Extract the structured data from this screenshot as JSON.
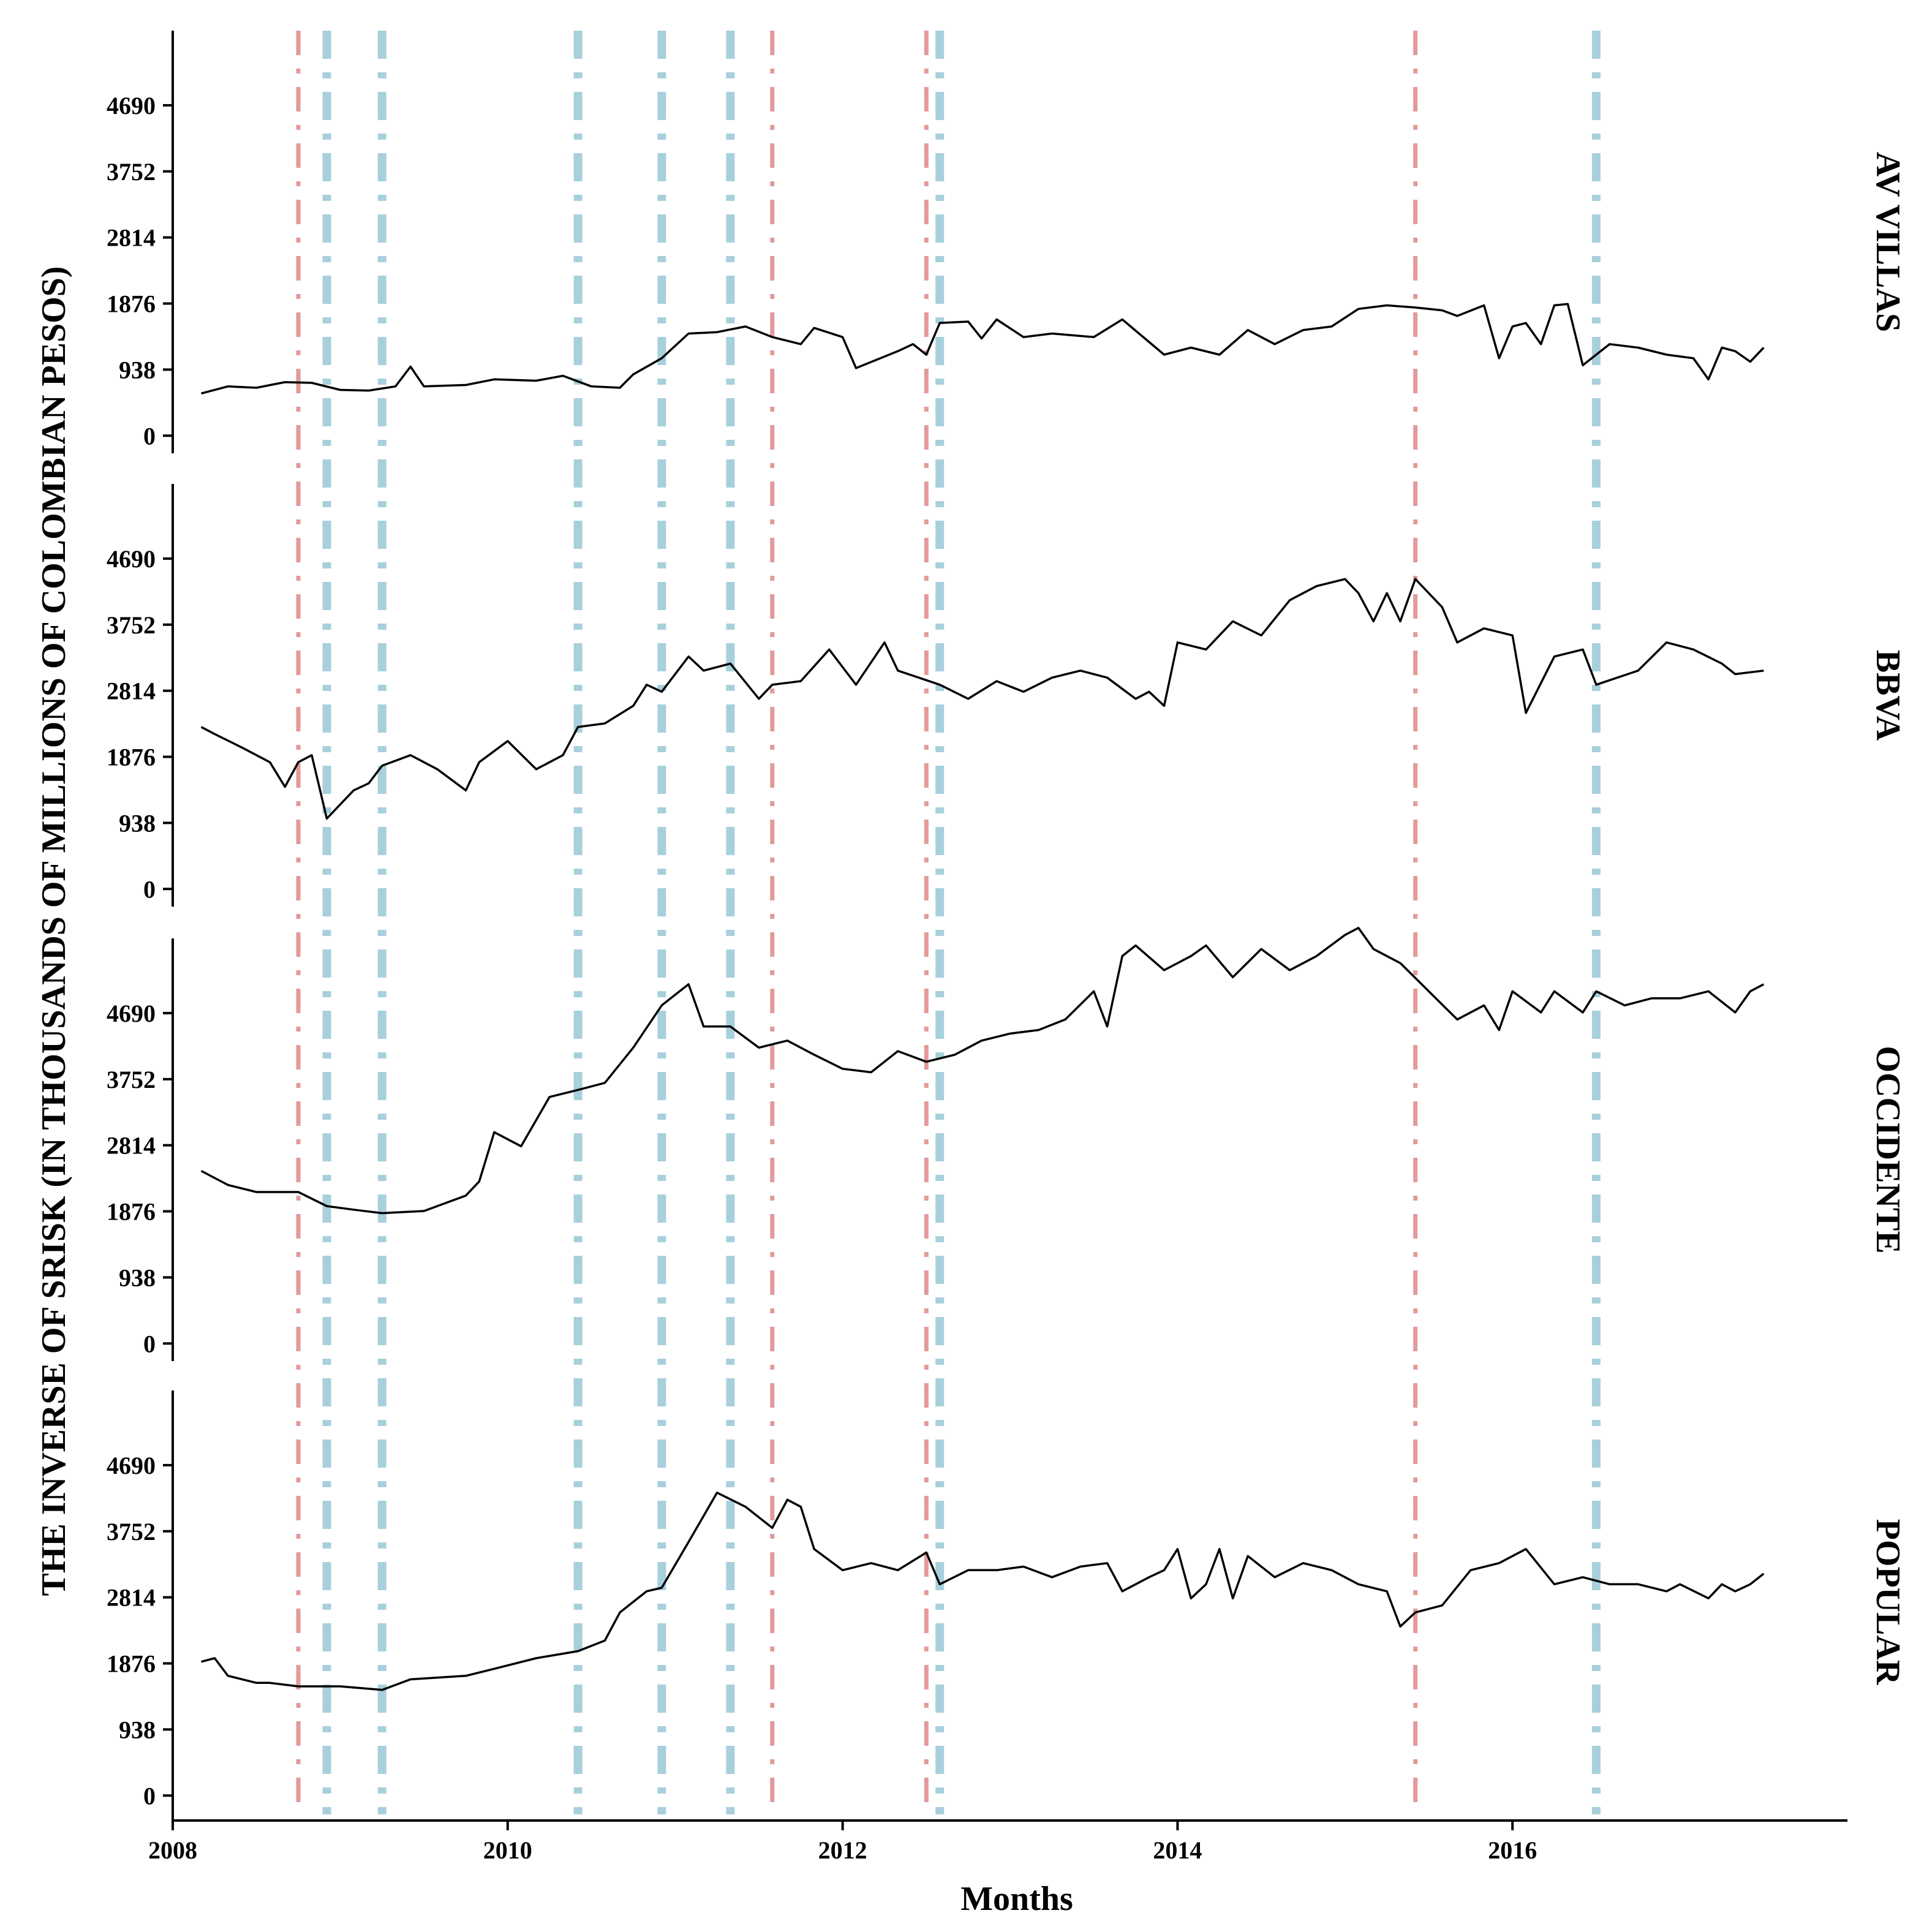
{
  "chart_data": {
    "type": "line",
    "layout": "faceted-vertical",
    "xlabel": "Months",
    "ylabel": "THE INVERSE OF SRISK (IN THOUSANDS OF MILLIONS OF COLOMBIAN PESOS)",
    "x_ticks": [
      2008,
      2010,
      2012,
      2014,
      2016
    ],
    "y_ticks": [
      0,
      938,
      1876,
      2814,
      3752,
      4690
    ],
    "xlim": [
      2008.0,
      2018.0
    ],
    "ylim": [
      -250,
      5750
    ],
    "grid": false,
    "vlines": {
      "red": {
        "color": "#e29a9a",
        "style": "dash-dot",
        "x": [
          2008.75,
          2011.58,
          2012.5,
          2015.42
        ]
      },
      "blue": {
        "color": "#a8d0dc",
        "style": "dash-dot",
        "x": [
          2008.92,
          2009.25,
          2010.42,
          2010.92,
          2011.33,
          2012.58,
          2016.5
        ]
      }
    },
    "line_color": "#000000",
    "panels": [
      {
        "name": "AV VILLAS",
        "points": [
          [
            2008.17,
            600
          ],
          [
            2008.33,
            700
          ],
          [
            2008.5,
            680
          ],
          [
            2008.67,
            760
          ],
          [
            2008.83,
            750
          ],
          [
            2009.0,
            650
          ],
          [
            2009.17,
            640
          ],
          [
            2009.33,
            700
          ],
          [
            2009.42,
            980
          ],
          [
            2009.5,
            700
          ],
          [
            2009.75,
            720
          ],
          [
            2009.92,
            800
          ],
          [
            2010.17,
            780
          ],
          [
            2010.33,
            850
          ],
          [
            2010.5,
            700
          ],
          [
            2010.67,
            680
          ],
          [
            2010.75,
            870
          ],
          [
            2010.92,
            1100
          ],
          [
            2011.08,
            1450
          ],
          [
            2011.25,
            1470
          ],
          [
            2011.42,
            1550
          ],
          [
            2011.58,
            1400
          ],
          [
            2011.75,
            1300
          ],
          [
            2011.83,
            1530
          ],
          [
            2012.0,
            1400
          ],
          [
            2012.08,
            960
          ],
          [
            2012.33,
            1200
          ],
          [
            2012.42,
            1300
          ],
          [
            2012.5,
            1150
          ],
          [
            2012.58,
            1600
          ],
          [
            2012.75,
            1620
          ],
          [
            2012.83,
            1380
          ],
          [
            2012.92,
            1650
          ],
          [
            2013.08,
            1400
          ],
          [
            2013.25,
            1450
          ],
          [
            2013.5,
            1400
          ],
          [
            2013.67,
            1650
          ],
          [
            2013.92,
            1150
          ],
          [
            2014.08,
            1250
          ],
          [
            2014.25,
            1150
          ],
          [
            2014.42,
            1500
          ],
          [
            2014.58,
            1300
          ],
          [
            2014.75,
            1500
          ],
          [
            2014.92,
            1550
          ],
          [
            2015.08,
            1800
          ],
          [
            2015.25,
            1850
          ],
          [
            2015.42,
            1820
          ],
          [
            2015.58,
            1780
          ],
          [
            2015.67,
            1700
          ],
          [
            2015.83,
            1850
          ],
          [
            2015.92,
            1100
          ],
          [
            2016.0,
            1550
          ],
          [
            2016.08,
            1600
          ],
          [
            2016.17,
            1300
          ],
          [
            2016.25,
            1850
          ],
          [
            2016.33,
            1870
          ],
          [
            2016.42,
            1000
          ],
          [
            2016.58,
            1300
          ],
          [
            2016.75,
            1250
          ],
          [
            2016.92,
            1150
          ],
          [
            2017.08,
            1100
          ],
          [
            2017.17,
            800
          ],
          [
            2017.25,
            1250
          ],
          [
            2017.33,
            1200
          ],
          [
            2017.42,
            1050
          ],
          [
            2017.5,
            1250
          ]
        ]
      },
      {
        "name": "BBVA",
        "points": [
          [
            2008.17,
            2300
          ],
          [
            2008.25,
            2200
          ],
          [
            2008.42,
            2000
          ],
          [
            2008.58,
            1800
          ],
          [
            2008.67,
            1450
          ],
          [
            2008.75,
            1800
          ],
          [
            2008.83,
            1900
          ],
          [
            2008.92,
            1000
          ],
          [
            2009.08,
            1400
          ],
          [
            2009.17,
            1500
          ],
          [
            2009.25,
            1750
          ],
          [
            2009.42,
            1900
          ],
          [
            2009.58,
            1700
          ],
          [
            2009.75,
            1400
          ],
          [
            2009.83,
            1800
          ],
          [
            2010.0,
            2100
          ],
          [
            2010.17,
            1700
          ],
          [
            2010.33,
            1900
          ],
          [
            2010.42,
            2300
          ],
          [
            2010.58,
            2350
          ],
          [
            2010.75,
            2600
          ],
          [
            2010.83,
            2900
          ],
          [
            2010.92,
            2800
          ],
          [
            2011.08,
            3300
          ],
          [
            2011.17,
            3100
          ],
          [
            2011.33,
            3200
          ],
          [
            2011.5,
            2700
          ],
          [
            2011.58,
            2900
          ],
          [
            2011.75,
            2950
          ],
          [
            2011.92,
            3400
          ],
          [
            2012.08,
            2900
          ],
          [
            2012.25,
            3500
          ],
          [
            2012.33,
            3100
          ],
          [
            2012.58,
            2900
          ],
          [
            2012.75,
            2700
          ],
          [
            2012.92,
            2950
          ],
          [
            2013.08,
            2800
          ],
          [
            2013.25,
            3000
          ],
          [
            2013.42,
            3100
          ],
          [
            2013.58,
            3000
          ],
          [
            2013.75,
            2700
          ],
          [
            2013.83,
            2800
          ],
          [
            2013.92,
            2600
          ],
          [
            2014.0,
            3500
          ],
          [
            2014.17,
            3400
          ],
          [
            2014.33,
            3800
          ],
          [
            2014.5,
            3600
          ],
          [
            2014.67,
            4100
          ],
          [
            2014.83,
            4300
          ],
          [
            2015.0,
            4400
          ],
          [
            2015.08,
            4200
          ],
          [
            2015.17,
            3800
          ],
          [
            2015.25,
            4200
          ],
          [
            2015.33,
            3800
          ],
          [
            2015.42,
            4400
          ],
          [
            2015.58,
            4000
          ],
          [
            2015.67,
            3500
          ],
          [
            2015.83,
            3700
          ],
          [
            2016.0,
            3600
          ],
          [
            2016.08,
            2500
          ],
          [
            2016.25,
            3300
          ],
          [
            2016.42,
            3400
          ],
          [
            2016.5,
            2900
          ],
          [
            2016.75,
            3100
          ],
          [
            2016.92,
            3500
          ],
          [
            2017.08,
            3400
          ],
          [
            2017.25,
            3200
          ],
          [
            2017.33,
            3050
          ],
          [
            2017.5,
            3100
          ]
        ]
      },
      {
        "name": "OCCIDENTE",
        "points": [
          [
            2008.17,
            2450
          ],
          [
            2008.33,
            2250
          ],
          [
            2008.5,
            2150
          ],
          [
            2008.75,
            2150
          ],
          [
            2008.92,
            1950
          ],
          [
            2009.08,
            1900
          ],
          [
            2009.25,
            1850
          ],
          [
            2009.5,
            1880
          ],
          [
            2009.75,
            2100
          ],
          [
            2009.83,
            2300
          ],
          [
            2009.92,
            3000
          ],
          [
            2010.08,
            2800
          ],
          [
            2010.25,
            3500
          ],
          [
            2010.42,
            3600
          ],
          [
            2010.58,
            3700
          ],
          [
            2010.75,
            4200
          ],
          [
            2010.92,
            4800
          ],
          [
            2011.08,
            5100
          ],
          [
            2011.17,
            4500
          ],
          [
            2011.33,
            4500
          ],
          [
            2011.5,
            4200
          ],
          [
            2011.67,
            4300
          ],
          [
            2011.83,
            4100
          ],
          [
            2012.0,
            3900
          ],
          [
            2012.17,
            3850
          ],
          [
            2012.33,
            4150
          ],
          [
            2012.5,
            4000
          ],
          [
            2012.67,
            4100
          ],
          [
            2012.83,
            4300
          ],
          [
            2013.0,
            4400
          ],
          [
            2013.17,
            4450
          ],
          [
            2013.33,
            4600
          ],
          [
            2013.5,
            5000
          ],
          [
            2013.58,
            4500
          ],
          [
            2013.67,
            5500
          ],
          [
            2013.75,
            5650
          ],
          [
            2013.92,
            5300
          ],
          [
            2014.08,
            5500
          ],
          [
            2014.17,
            5650
          ],
          [
            2014.33,
            5200
          ],
          [
            2014.5,
            5600
          ],
          [
            2014.67,
            5300
          ],
          [
            2014.83,
            5500
          ],
          [
            2015.0,
            5800
          ],
          [
            2015.08,
            5900
          ],
          [
            2015.17,
            5600
          ],
          [
            2015.33,
            5400
          ],
          [
            2015.5,
            5000
          ],
          [
            2015.67,
            4600
          ],
          [
            2015.83,
            4800
          ],
          [
            2015.92,
            4450
          ],
          [
            2016.0,
            5000
          ],
          [
            2016.17,
            4700
          ],
          [
            2016.25,
            5000
          ],
          [
            2016.42,
            4700
          ],
          [
            2016.5,
            5000
          ],
          [
            2016.67,
            4800
          ],
          [
            2016.83,
            4900
          ],
          [
            2017.0,
            4900
          ],
          [
            2017.17,
            5000
          ],
          [
            2017.33,
            4700
          ],
          [
            2017.42,
            5000
          ],
          [
            2017.5,
            5100
          ]
        ]
      },
      {
        "name": "POPULAR",
        "points": [
          [
            2008.17,
            1900
          ],
          [
            2008.25,
            1950
          ],
          [
            2008.33,
            1700
          ],
          [
            2008.5,
            1600
          ],
          [
            2008.58,
            1600
          ],
          [
            2008.75,
            1550
          ],
          [
            2009.0,
            1550
          ],
          [
            2009.25,
            1500
          ],
          [
            2009.42,
            1650
          ],
          [
            2009.75,
            1700
          ],
          [
            2009.92,
            1800
          ],
          [
            2010.17,
            1950
          ],
          [
            2010.42,
            2050
          ],
          [
            2010.58,
            2200
          ],
          [
            2010.67,
            2600
          ],
          [
            2010.83,
            2900
          ],
          [
            2010.92,
            2950
          ],
          [
            2011.08,
            3600
          ],
          [
            2011.25,
            4300
          ],
          [
            2011.42,
            4100
          ],
          [
            2011.58,
            3800
          ],
          [
            2011.67,
            4200
          ],
          [
            2011.75,
            4100
          ],
          [
            2011.83,
            3500
          ],
          [
            2012.0,
            3200
          ],
          [
            2012.17,
            3300
          ],
          [
            2012.33,
            3200
          ],
          [
            2012.5,
            3450
          ],
          [
            2012.58,
            3000
          ],
          [
            2012.75,
            3200
          ],
          [
            2012.92,
            3200
          ],
          [
            2013.08,
            3250
          ],
          [
            2013.25,
            3100
          ],
          [
            2013.42,
            3250
          ],
          [
            2013.58,
            3300
          ],
          [
            2013.67,
            2900
          ],
          [
            2013.83,
            3100
          ],
          [
            2013.92,
            3200
          ],
          [
            2014.0,
            3500
          ],
          [
            2014.08,
            2800
          ],
          [
            2014.17,
            3000
          ],
          [
            2014.25,
            3500
          ],
          [
            2014.33,
            2800
          ],
          [
            2014.42,
            3400
          ],
          [
            2014.58,
            3100
          ],
          [
            2014.75,
            3300
          ],
          [
            2014.92,
            3200
          ],
          [
            2015.08,
            3000
          ],
          [
            2015.25,
            2900
          ],
          [
            2015.33,
            2400
          ],
          [
            2015.42,
            2600
          ],
          [
            2015.58,
            2700
          ],
          [
            2015.75,
            3200
          ],
          [
            2015.92,
            3300
          ],
          [
            2016.08,
            3500
          ],
          [
            2016.25,
            3000
          ],
          [
            2016.42,
            3100
          ],
          [
            2016.58,
            3000
          ],
          [
            2016.75,
            3000
          ],
          [
            2016.92,
            2900
          ],
          [
            2017.0,
            3000
          ],
          [
            2017.17,
            2800
          ],
          [
            2017.25,
            3000
          ],
          [
            2017.33,
            2900
          ],
          [
            2017.42,
            3000
          ],
          [
            2017.5,
            3150
          ]
        ]
      }
    ]
  }
}
